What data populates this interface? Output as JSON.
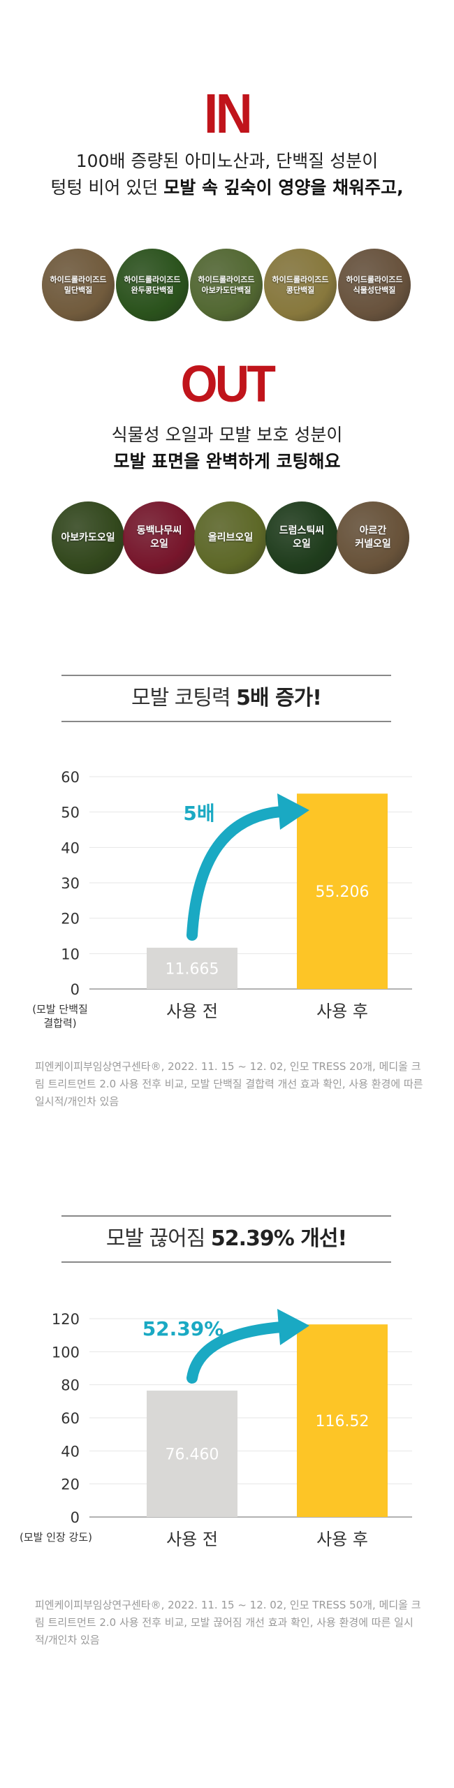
{
  "in_section": {
    "heading": "IN",
    "line1": "100배 증량된 아미노산과, 단백질 성분이",
    "line2_plain": "텅텅 비어 있던 ",
    "line2_bold": "모발 속 깊숙이 영양을 채워주고,",
    "items": [
      {
        "label": "하이드롤라이즈드\n밀단백질",
        "color": "#a8875a"
      },
      {
        "label": "하이드롤라이즈드\n완두콩단백질",
        "color": "#3f7a2a"
      },
      {
        "label": "하이드롤라이즈드\n아보카도단백질",
        "color": "#7a9a4a"
      },
      {
        "label": "하이드롤라이즈드\n콩단백질",
        "color": "#c9b25a"
      },
      {
        "label": "하이드롤라이즈드\n식물성단백질",
        "color": "#9a7a5a"
      }
    ]
  },
  "out_section": {
    "heading": "OUT",
    "line1": "식물성 오일과 모발 보호 성분이",
    "line2_bold": "모발 표면을 완벽하게 코팅해요",
    "items": [
      {
        "label": "아보카도오일",
        "color": "#4a6a2a"
      },
      {
        "label": "동백나무씨\n오일",
        "color": "#b02040"
      },
      {
        "label": "올리브오일",
        "color": "#8a9a3a"
      },
      {
        "label": "드럼스틱씨\n오일",
        "color": "#2e5a2a"
      },
      {
        "label": "아르간\n커넬오일",
        "color": "#9a7a55"
      }
    ]
  },
  "chart_data": [
    {
      "type": "bar",
      "title_plain": "모발 코팅력 ",
      "title_bold": "5배 증가!",
      "categories": [
        "사용 전",
        "사용 후"
      ],
      "values": [
        11.665,
        55.206
      ],
      "value_labels": [
        "11.665",
        "55.206"
      ],
      "bar_colors": [
        "#d9d8d6",
        "#fdc526"
      ],
      "ylim": [
        0,
        60
      ],
      "yticks": [
        0,
        10,
        20,
        30,
        40,
        50,
        60
      ],
      "ylabel": "(모발 단백질\n결합력)",
      "grid": true,
      "arrow_label": "5배",
      "arrow_color": "#1aa9c3",
      "note": "피엔케이피부임상연구센타®, 2022. 11. 15 ~ 12. 02, 인모 TRESS 20개, 메디올 크림 트리트먼트 2.0 사용 전후 비교, 모발 단백질 결합력 개선 효과 확인, 사용 환경에 따른 일시적/개인차 있음"
    },
    {
      "type": "bar",
      "title_plain": "모발 끊어짐 ",
      "title_bold": "52.39% 개선!",
      "categories": [
        "사용 전",
        "사용 후"
      ],
      "values": [
        76.46,
        116.52
      ],
      "value_labels": [
        "76.460",
        "116.52"
      ],
      "bar_colors": [
        "#d9d8d6",
        "#fdc526"
      ],
      "ylim": [
        0,
        120
      ],
      "yticks": [
        0,
        20,
        40,
        60,
        80,
        100,
        120
      ],
      "ylabel": "(모발 인장 강도)",
      "grid": true,
      "arrow_label": "52.39%",
      "arrow_color": "#1aa9c3",
      "note": "피엔케이피부임상연구센타®, 2022. 11. 15 ~ 12. 02, 인모 TRESS 50개, 메디올 크림 트리트먼트 2.0 사용 전후 비교, 모발 끊어짐 개선 효과 확인, 사용 환경에 따른 일시적/개인차 있음"
    }
  ]
}
